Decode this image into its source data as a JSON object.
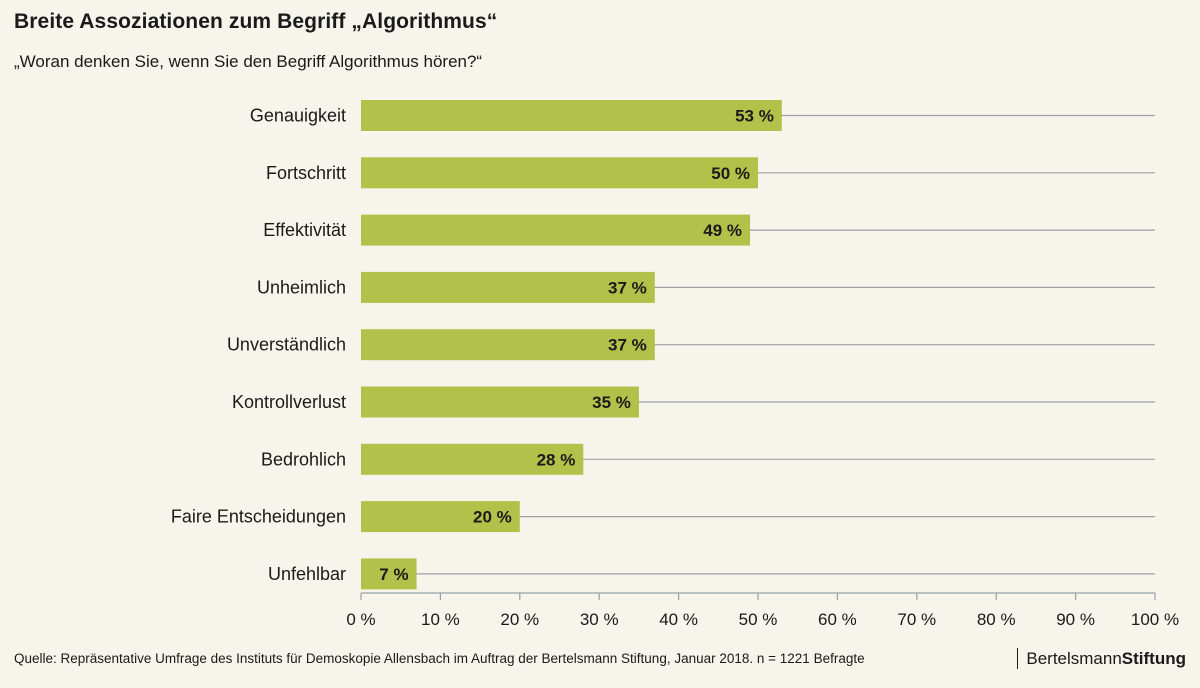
{
  "header": {
    "title": "Breite Assoziationen zum Begriff „Algorithmus“",
    "subtitle": "„Woran denken Sie, wenn Sie den Begriff Algorithmus hören?“"
  },
  "footer": {
    "source": "Quelle: Repräsentative Umfrage des Instituts für Demoskopie Allensbach im Auftrag der Bertelsmann Stiftung, Januar 2018. n = 1221 Befragte",
    "logo_regular": "Bertelsmann",
    "logo_bold": "Stiftung"
  },
  "colors": {
    "bar": "#b2c14a",
    "grid": "#9aa0a6",
    "background": "#f7f4ec"
  },
  "chart_data": {
    "type": "bar",
    "orientation": "horizontal",
    "categories": [
      "Genauigkeit",
      "Fortschritt",
      "Effektivität",
      "Unheimlich",
      "Unverständlich",
      "Kontrollverlust",
      "Bedrohlich",
      "Faire Entscheidungen",
      "Unfehlbar"
    ],
    "values": [
      53,
      50,
      49,
      37,
      37,
      35,
      28,
      20,
      7
    ],
    "value_labels": [
      "53 %",
      "50 %",
      "49 %",
      "37 %",
      "37 %",
      "35 %",
      "28 %",
      "20 %",
      "7 %"
    ],
    "xlim": [
      0,
      100
    ],
    "x_ticks": [
      0,
      10,
      20,
      30,
      40,
      50,
      60,
      70,
      80,
      90,
      100
    ],
    "x_tick_labels": [
      "0 %",
      "10 %",
      "20 %",
      "30 %",
      "40 %",
      "50 %",
      "60 %",
      "70 %",
      "80 %",
      "90 %",
      "100 %"
    ],
    "grid": true
  }
}
